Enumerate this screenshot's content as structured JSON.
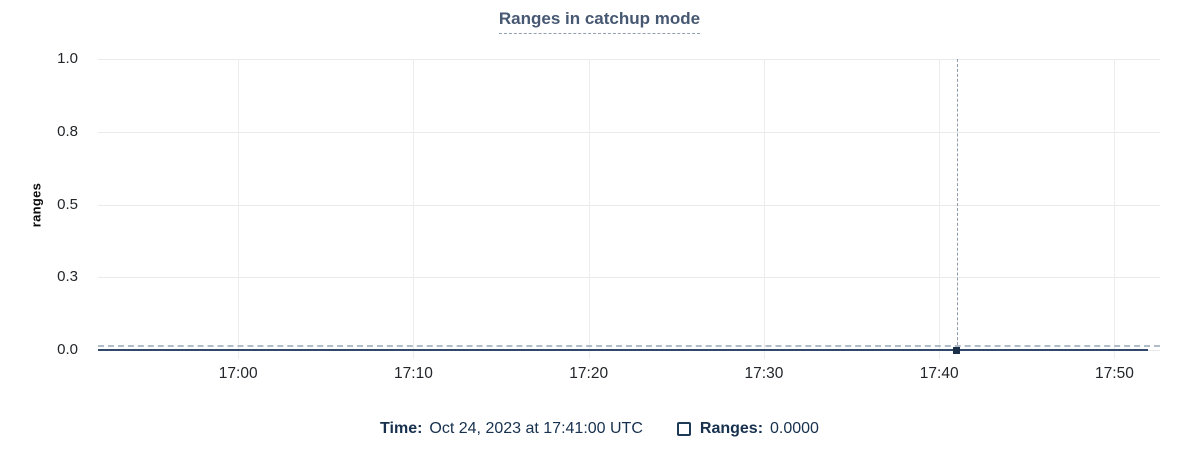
{
  "title": "Ranges in catchup mode",
  "legend": {
    "time_label": "Time:",
    "time_value": "Oct 24, 2023 at 17:41:00 UTC",
    "series_label": "Ranges:",
    "series_value": "0.0000"
  },
  "colors": {
    "title": "#475872",
    "series_line": "#30496b",
    "hover_marker": "#1d3049",
    "legend_text": "#16304e",
    "gridline": "#e9eaec",
    "cursor_dash": "#9aa8b4"
  },
  "chart_data": {
    "type": "line",
    "title": "Ranges in catchup mode",
    "xlabel": "",
    "ylabel": "ranges",
    "ylim": [
      0,
      1
    ],
    "grid": true,
    "legend_position": "bottom",
    "y_ticks": [
      {
        "label": "0.0",
        "value": 0.0
      },
      {
        "label": "0.3",
        "value": 0.25
      },
      {
        "label": "0.5",
        "value": 0.5
      },
      {
        "label": "0.8",
        "value": 0.75
      },
      {
        "label": "1.0",
        "value": 1.0
      }
    ],
    "x_ticks": [
      "17:00",
      "17:10",
      "17:20",
      "17:30",
      "17:40",
      "17:50"
    ],
    "x_domain": [
      "16:52",
      "17:52.6"
    ],
    "series": [
      {
        "name": "Ranges",
        "color": "#30496b",
        "value": 0,
        "start": "16:52",
        "end": "17:51.9"
      }
    ],
    "hover": {
      "time": "17:41",
      "time_full": "Oct 24, 2023 at 17:41:00 UTC",
      "value": 0,
      "value_label": "0.0000"
    }
  }
}
